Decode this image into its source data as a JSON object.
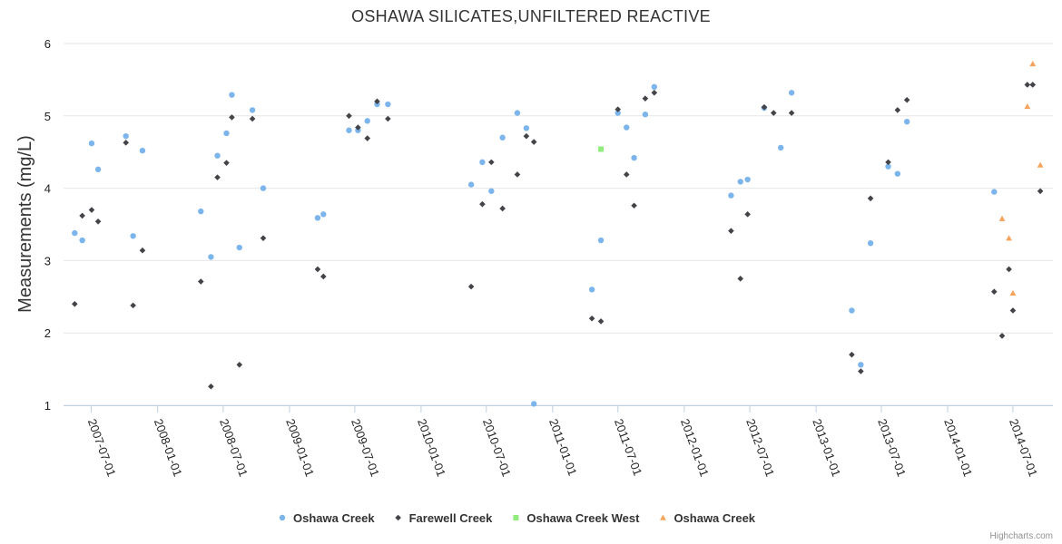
{
  "chart_data": {
    "type": "scatter",
    "title": "OSHAWA SILICATES,UNFILTERED REACTIVE",
    "ylabel": "Measurements (mg/L)",
    "xlabel": "",
    "ylim": [
      1,
      6
    ],
    "yticks": [
      1,
      2,
      3,
      4,
      5,
      6
    ],
    "xlim": [
      "2007-04-15",
      "2014-10-20"
    ],
    "xticks": [
      "2007-07-01",
      "2008-01-01",
      "2008-07-01",
      "2009-01-01",
      "2009-07-01",
      "2010-01-01",
      "2010-07-01",
      "2011-01-01",
      "2011-07-01",
      "2012-01-01",
      "2012-07-01",
      "2013-01-01",
      "2013-07-01",
      "2014-01-01",
      "2014-07-01"
    ],
    "grid": true,
    "legend_position": "bottom",
    "series": [
      {
        "name": "Oshawa Creek",
        "marker": "circle",
        "color": "#7cb5ec",
        "points": [
          [
            "2007-05-16",
            3.38
          ],
          [
            "2007-06-06",
            3.28
          ],
          [
            "2007-07-02",
            4.62
          ],
          [
            "2007-07-20",
            4.26
          ],
          [
            "2007-10-05",
            4.72
          ],
          [
            "2007-10-25",
            3.34
          ],
          [
            "2007-11-20",
            4.52
          ],
          [
            "2008-04-30",
            3.68
          ],
          [
            "2008-05-28",
            3.05
          ],
          [
            "2008-06-15",
            4.45
          ],
          [
            "2008-07-10",
            4.76
          ],
          [
            "2008-07-25",
            5.29
          ],
          [
            "2008-08-15",
            3.18
          ],
          [
            "2008-09-20",
            5.08
          ],
          [
            "2008-10-20",
            4.0
          ],
          [
            "2009-03-20",
            3.59
          ],
          [
            "2009-04-05",
            3.64
          ],
          [
            "2009-06-15",
            4.8
          ],
          [
            "2009-07-10",
            4.8
          ],
          [
            "2009-08-05",
            4.93
          ],
          [
            "2009-09-01",
            5.16
          ],
          [
            "2009-10-01",
            5.16
          ],
          [
            "2010-05-20",
            4.05
          ],
          [
            "2010-06-20",
            4.36
          ],
          [
            "2010-07-15",
            3.96
          ],
          [
            "2010-08-15",
            4.7
          ],
          [
            "2010-09-25",
            5.04
          ],
          [
            "2010-10-20",
            4.83
          ],
          [
            "2010-11-10",
            1.02
          ],
          [
            "2011-04-20",
            2.6
          ],
          [
            "2011-05-15",
            3.28
          ],
          [
            "2011-07-01",
            5.04
          ],
          [
            "2011-07-25",
            4.84
          ],
          [
            "2011-08-15",
            4.42
          ],
          [
            "2011-09-15",
            5.02
          ],
          [
            "2011-10-10",
            5.4
          ],
          [
            "2012-05-10",
            3.9
          ],
          [
            "2012-06-05",
            4.09
          ],
          [
            "2012-06-25",
            4.12
          ],
          [
            "2012-08-10",
            5.11
          ],
          [
            "2012-09-25",
            4.56
          ],
          [
            "2012-10-25",
            5.32
          ],
          [
            "2013-04-10",
            2.31
          ],
          [
            "2013-05-05",
            1.56
          ],
          [
            "2013-06-01",
            3.24
          ],
          [
            "2013-07-20",
            4.3
          ],
          [
            "2013-08-15",
            4.2
          ],
          [
            "2013-09-10",
            4.92
          ],
          [
            "2014-05-10",
            3.95
          ]
        ]
      },
      {
        "name": "Farewell Creek",
        "marker": "diamond",
        "color": "#434348",
        "points": [
          [
            "2007-05-16",
            2.4
          ],
          [
            "2007-06-06",
            3.62
          ],
          [
            "2007-07-02",
            3.7
          ],
          [
            "2007-07-20",
            3.54
          ],
          [
            "2007-10-05",
            4.63
          ],
          [
            "2007-10-25",
            2.38
          ],
          [
            "2007-11-20",
            3.14
          ],
          [
            "2008-04-30",
            2.71
          ],
          [
            "2008-05-28",
            1.26
          ],
          [
            "2008-06-15",
            4.15
          ],
          [
            "2008-07-10",
            4.35
          ],
          [
            "2008-07-25",
            4.98
          ],
          [
            "2008-08-15",
            1.56
          ],
          [
            "2008-09-20",
            4.96
          ],
          [
            "2008-10-20",
            3.31
          ],
          [
            "2009-03-20",
            2.88
          ],
          [
            "2009-04-05",
            2.78
          ],
          [
            "2009-06-15",
            5.0
          ],
          [
            "2009-07-10",
            4.84
          ],
          [
            "2009-08-05",
            4.69
          ],
          [
            "2009-09-01",
            5.2
          ],
          [
            "2009-10-01",
            4.96
          ],
          [
            "2010-05-20",
            2.64
          ],
          [
            "2010-06-20",
            3.78
          ],
          [
            "2010-07-15",
            4.36
          ],
          [
            "2010-08-15",
            3.72
          ],
          [
            "2010-09-25",
            4.19
          ],
          [
            "2010-10-20",
            4.72
          ],
          [
            "2010-11-10",
            4.64
          ],
          [
            "2011-04-20",
            2.2
          ],
          [
            "2011-05-15",
            2.16
          ],
          [
            "2011-07-01",
            5.09
          ],
          [
            "2011-07-25",
            4.19
          ],
          [
            "2011-08-15",
            3.76
          ],
          [
            "2011-09-15",
            5.24
          ],
          [
            "2011-10-10",
            5.32
          ],
          [
            "2012-05-10",
            3.41
          ],
          [
            "2012-06-05",
            2.75
          ],
          [
            "2012-06-25",
            3.64
          ],
          [
            "2012-08-10",
            5.12
          ],
          [
            "2012-09-05",
            5.04
          ],
          [
            "2012-10-25",
            5.04
          ],
          [
            "2013-04-10",
            1.7
          ],
          [
            "2013-05-05",
            1.47
          ],
          [
            "2013-06-01",
            3.86
          ],
          [
            "2013-07-20",
            4.36
          ],
          [
            "2013-08-15",
            5.08
          ],
          [
            "2013-09-10",
            5.22
          ],
          [
            "2014-05-10",
            2.57
          ],
          [
            "2014-06-01",
            1.96
          ],
          [
            "2014-06-20",
            2.88
          ],
          [
            "2014-07-01",
            2.31
          ],
          [
            "2014-08-10",
            5.43
          ],
          [
            "2014-08-25",
            5.43
          ],
          [
            "2014-09-15",
            3.96
          ]
        ]
      },
      {
        "name": "Oshawa Creek West",
        "marker": "square",
        "color": "#90ed7d",
        "points": [
          [
            "2011-05-15",
            4.54
          ]
        ]
      },
      {
        "name": "Oshawa Creek",
        "marker": "triangle",
        "color": "#f7a35c",
        "points": [
          [
            "2014-06-01",
            3.58
          ],
          [
            "2014-06-20",
            3.31
          ],
          [
            "2014-07-01",
            2.55
          ],
          [
            "2014-08-10",
            5.13
          ],
          [
            "2014-08-25",
            5.72
          ],
          [
            "2014-09-15",
            4.32
          ]
        ]
      }
    ]
  },
  "credits": "Highcharts.com"
}
